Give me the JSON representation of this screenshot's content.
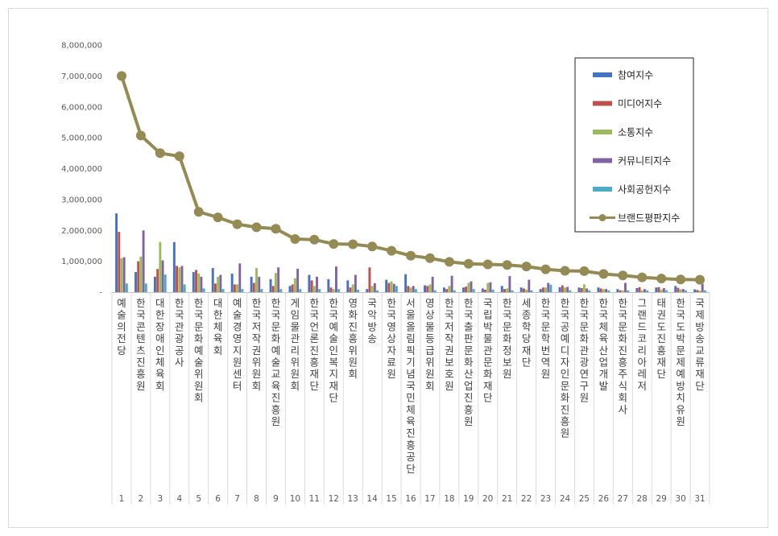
{
  "chart_data": {
    "type": "bar",
    "yticks": [
      "-",
      "1,000,000",
      "2,000,000",
      "3,000,000",
      "4,000,000",
      "5,000,000",
      "6,000,000",
      "7,000,000",
      "8,000,000"
    ],
    "ylim": [
      0,
      8000000
    ],
    "grid": false,
    "legend_position": "top-right",
    "ranks": [
      "1",
      "2",
      "3",
      "4",
      "5",
      "6",
      "7",
      "8",
      "9",
      "10",
      "11",
      "12",
      "13",
      "14",
      "15",
      "16",
      "17",
      "18",
      "19",
      "20",
      "21",
      "22",
      "23",
      "24",
      "25",
      "26",
      "27",
      "28",
      "29",
      "30",
      "31"
    ],
    "categories": [
      "예술의전당",
      "한국콘텐츠진흥원",
      "대한장애인체육회",
      "한국관광공사",
      "한국문화예술위원회",
      "대한체육회",
      "예술경영지원센터",
      "한국저작권위원회",
      "한국문화예술교육진흥원",
      "게임물관리위원회",
      "한국언론진흥재단",
      "한국예술인복지재단",
      "영화진흥위원회",
      "국악방송",
      "한국영상자료원",
      "서울올림픽기념국민체육진흥공단",
      "영상물등급위원회",
      "한국저작권보호원",
      "한국출판문화산업진흥원",
      "국립박물관문화재단",
      "한국문화정보원",
      "세종학당재단",
      "한국문학번역원",
      "한국공예디자인문화진흥원",
      "한국문화관광연구원",
      "한국체육산업개발",
      "한국문화진흥주식회사",
      "그랜드코리아레저",
      "태권도진흥재단",
      "한국도박문제예방치유원",
      "국제방송교류재단"
    ],
    "series": [
      {
        "name": "참여지수",
        "color": "#4472c4",
        "type": "bar",
        "values": [
          2550000,
          650000,
          500000,
          1620000,
          650000,
          780000,
          600000,
          500000,
          420000,
          200000,
          560000,
          420000,
          380000,
          100000,
          400000,
          580000,
          220000,
          150000,
          150000,
          120000,
          200000,
          150000,
          100000,
          160000,
          150000,
          150000,
          100000,
          130000,
          150000,
          200000,
          90000
        ]
      },
      {
        "name": "미디어지수",
        "color": "#c0504d",
        "type": "bar",
        "values": [
          1950000,
          1000000,
          750000,
          850000,
          720000,
          280000,
          250000,
          300000,
          200000,
          250000,
          380000,
          150000,
          150000,
          800000,
          300000,
          200000,
          200000,
          100000,
          180000,
          80000,
          100000,
          120000,
          150000,
          220000,
          130000,
          120000,
          60000,
          160000,
          160000,
          140000,
          70000
        ]
      },
      {
        "name": "소통지수",
        "color": "#9bbb59",
        "type": "bar",
        "values": [
          1100000,
          1150000,
          1620000,
          800000,
          600000,
          500000,
          250000,
          780000,
          620000,
          450000,
          200000,
          100000,
          250000,
          200000,
          350000,
          150000,
          250000,
          200000,
          300000,
          300000,
          120000,
          80000,
          150000,
          150000,
          250000,
          100000,
          60000,
          60000,
          80000,
          90000,
          50000
        ]
      },
      {
        "name": "커뮤니티지수",
        "color": "#8064a2",
        "type": "bar",
        "values": [
          1130000,
          2000000,
          1030000,
          850000,
          500000,
          560000,
          930000,
          500000,
          800000,
          760000,
          500000,
          830000,
          560000,
          290000,
          270000,
          200000,
          500000,
          530000,
          350000,
          320000,
          520000,
          400000,
          300000,
          170000,
          120000,
          100000,
          300000,
          100000,
          130000,
          100000,
          270000
        ]
      },
      {
        "name": "사회공헌지수",
        "color": "#4bacc6",
        "type": "bar",
        "values": [
          280000,
          280000,
          570000,
          250000,
          120000,
          100000,
          100000,
          100000,
          100000,
          100000,
          100000,
          100000,
          80000,
          60000,
          200000,
          100000,
          60000,
          60000,
          100000,
          80000,
          60000,
          60000,
          240000,
          60000,
          60000,
          60000,
          60000,
          60000,
          60000,
          60000,
          60000
        ]
      },
      {
        "name": "브랜드평판지수",
        "color": "#948a54",
        "type": "line",
        "values": [
          7000000,
          5070000,
          4500000,
          4400000,
          2600000,
          2420000,
          2200000,
          2100000,
          2050000,
          1720000,
          1700000,
          1560000,
          1550000,
          1480000,
          1340000,
          1180000,
          1100000,
          980000,
          920000,
          900000,
          880000,
          830000,
          740000,
          690000,
          680000,
          590000,
          540000,
          480000,
          440000,
          410000,
          400000
        ]
      }
    ]
  }
}
